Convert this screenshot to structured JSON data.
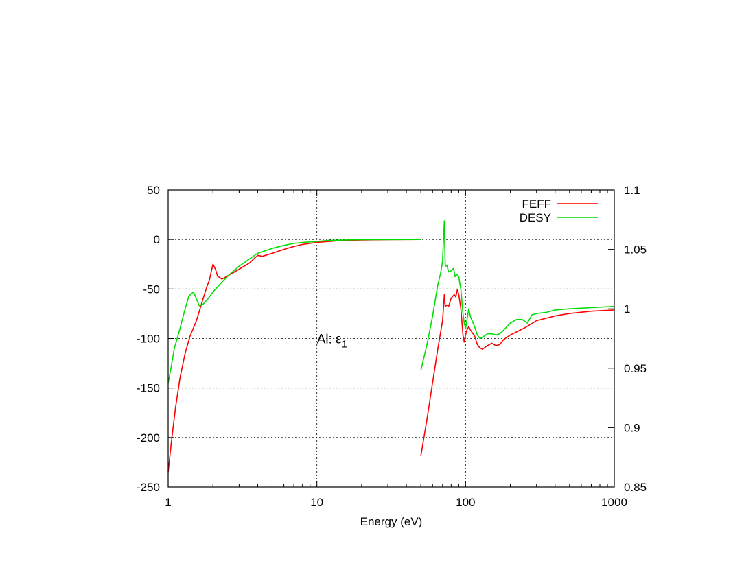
{
  "chart_data": {
    "type": "line",
    "title": "",
    "xlabel": "Energy (eV)",
    "ylabel": "",
    "xscale": "log",
    "xlim": [
      1,
      1000
    ],
    "ylim": [
      -250,
      50
    ],
    "y2lim": [
      0.85,
      1.1
    ],
    "grid": true,
    "legend_position": "top-right",
    "annotation": {
      "text": "Al: ε",
      "subscript": "1"
    },
    "x_ticks": [
      1,
      10,
      100,
      1000
    ],
    "x_tick_labels": [
      "1",
      "10",
      "100",
      "1000"
    ],
    "y_ticks": [
      50,
      0,
      -50,
      -100,
      -150,
      -200,
      -250
    ],
    "y_tick_labels": [
      "50",
      "0",
      "-50",
      "-100",
      "-150",
      "-200",
      "-250"
    ],
    "y2_ticks": [
      1.1,
      1.05,
      1,
      0.95,
      0.9,
      0.85
    ],
    "y2_tick_labels": [
      "1.1",
      "1.05",
      "1",
      "0.95",
      "0.9",
      "0.85"
    ],
    "series": [
      {
        "name": "FEFF",
        "color": "#ff0000",
        "axis": "y",
        "segments": [
          [
            [
              1.0,
              -235
            ],
            [
              1.05,
              -205
            ],
            [
              1.12,
              -170
            ],
            [
              1.2,
              -140
            ],
            [
              1.3,
              -115
            ],
            [
              1.4,
              -98
            ],
            [
              1.55,
              -82
            ],
            [
              1.7,
              -62
            ],
            [
              1.8,
              -50
            ],
            [
              1.9,
              -40
            ],
            [
              2.0,
              -25
            ],
            [
              2.08,
              -30
            ],
            [
              2.15,
              -37
            ],
            [
              2.3,
              -40
            ],
            [
              2.5,
              -37
            ],
            [
              3.0,
              -30
            ],
            [
              3.5,
              -24
            ],
            [
              4.0,
              -16
            ],
            [
              4.3,
              -17
            ],
            [
              5.0,
              -14
            ],
            [
              6.0,
              -10
            ],
            [
              7.0,
              -7
            ],
            [
              8.0,
              -5
            ],
            [
              10,
              -3
            ],
            [
              12,
              -2
            ],
            [
              15,
              -1
            ],
            [
              20,
              -0.5
            ],
            [
              30,
              -0.2
            ],
            [
              50,
              0
            ]
          ]
        ]
      },
      {
        "name": "FEFF",
        "color": "#ff0000",
        "axis": "y2",
        "segments": [
          [
            [
              50,
              0.876
            ],
            [
              55,
              0.907
            ],
            [
              60,
              0.938
            ],
            [
              65,
              0.966
            ],
            [
              70,
              0.99
            ],
            [
              72,
              1.012
            ],
            [
              73,
              1.002
            ],
            [
              75,
              1.003
            ],
            [
              77,
              1.002
            ],
            [
              80,
              1.009
            ],
            [
              84,
              1.012
            ],
            [
              86,
              1.01
            ],
            [
              88,
              1.016
            ],
            [
              90,
              1.012
            ],
            [
              93,
              1.0
            ],
            [
              96,
              0.978
            ],
            [
              98,
              0.972
            ],
            [
              100,
              0.978
            ],
            [
              102,
              0.982
            ],
            [
              105,
              0.985
            ],
            [
              108,
              0.982
            ],
            [
              115,
              0.977
            ],
            [
              120,
              0.97
            ],
            [
              125,
              0.967
            ],
            [
              130,
              0.966
            ],
            [
              140,
              0.969
            ],
            [
              150,
              0.971
            ],
            [
              160,
              0.969
            ],
            [
              170,
              0.97
            ],
            [
              180,
              0.974
            ],
            [
              200,
              0.978
            ],
            [
              250,
              0.984
            ],
            [
              300,
              0.99
            ],
            [
              400,
              0.994
            ],
            [
              500,
              0.996
            ],
            [
              700,
              0.998
            ],
            [
              1000,
              0.999
            ]
          ]
        ]
      },
      {
        "name": "DESY",
        "color": "#00dd00",
        "axis": "y",
        "segments": [
          [
            [
              1.0,
              -145
            ],
            [
              1.05,
              -128
            ],
            [
              1.1,
              -110
            ],
            [
              1.2,
              -90
            ],
            [
              1.3,
              -70
            ],
            [
              1.38,
              -57
            ],
            [
              1.48,
              -53
            ],
            [
              1.55,
              -60
            ],
            [
              1.62,
              -67
            ],
            [
              1.7,
              -66
            ],
            [
              1.85,
              -60
            ],
            [
              2.0,
              -53
            ],
            [
              2.3,
              -43
            ],
            [
              2.6,
              -35
            ],
            [
              3.0,
              -27
            ],
            [
              3.5,
              -20
            ],
            [
              4.0,
              -14
            ],
            [
              5.0,
              -9
            ],
            [
              6.0,
              -6
            ],
            [
              7.0,
              -4
            ],
            [
              8.0,
              -3
            ],
            [
              10,
              -2
            ],
            [
              12,
              -1
            ],
            [
              15,
              -0.6
            ],
            [
              20,
              -0.2
            ],
            [
              50,
              0
            ]
          ]
        ]
      },
      {
        "name": "DESY",
        "color": "#00dd00",
        "axis": "y2",
        "segments": [
          [
            [
              50,
              0.948
            ],
            [
              55,
              0.97
            ],
            [
              60,
              0.994
            ],
            [
              65,
              1.02
            ],
            [
              68,
              1.03
            ],
            [
              70,
              1.04
            ],
            [
              71,
              1.058
            ],
            [
              72,
              1.074
            ],
            [
              72.5,
              1.052
            ],
            [
              73,
              1.036
            ],
            [
              75,
              1.036
            ],
            [
              77,
              1.031
            ],
            [
              80,
              1.032
            ],
            [
              83,
              1.034
            ],
            [
              85,
              1.027
            ],
            [
              87,
              1.029
            ],
            [
              90,
              1.027
            ],
            [
              93,
              1.016
            ],
            [
              96,
              0.996
            ],
            [
              98,
              0.988
            ],
            [
              100,
              0.983
            ],
            [
              102,
              0.99
            ],
            [
              105,
              1.0
            ],
            [
              108,
              0.993
            ],
            [
              115,
              0.985
            ],
            [
              120,
              0.978
            ],
            [
              125,
              0.975
            ],
            [
              130,
              0.976
            ],
            [
              140,
              0.979
            ],
            [
              150,
              0.979
            ],
            [
              160,
              0.978
            ],
            [
              170,
              0.979
            ],
            [
              180,
              0.982
            ],
            [
              200,
              0.988
            ],
            [
              220,
              0.991
            ],
            [
              240,
              0.991
            ],
            [
              260,
              0.988
            ],
            [
              280,
              0.995
            ],
            [
              300,
              0.996
            ],
            [
              350,
              0.997
            ],
            [
              400,
              0.999
            ],
            [
              500,
              1.0
            ],
            [
              700,
              1.001
            ],
            [
              1000,
              1.002
            ]
          ]
        ]
      }
    ],
    "legend": [
      {
        "label": "FEFF",
        "color": "#ff0000"
      },
      {
        "label": "DESY",
        "color": "#00dd00"
      }
    ]
  }
}
